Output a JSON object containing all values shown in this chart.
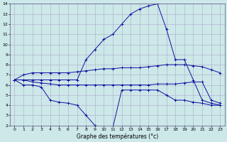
{
  "xlabel": "Graphe des températures (°c)",
  "hours": [
    0,
    1,
    2,
    3,
    4,
    5,
    6,
    7,
    8,
    9,
    10,
    11,
    12,
    13,
    14,
    15,
    16,
    17,
    18,
    19,
    20,
    21,
    22,
    23
  ],
  "temp_main": [
    6.5,
    6.5,
    6.5,
    6.5,
    6.5,
    6.5,
    6.5,
    6.5,
    8.5,
    9.5,
    10.5,
    11.0,
    12.0,
    13.0,
    13.5,
    13.8,
    14.0,
    11.5,
    8.5,
    8.5,
    6.5,
    4.5,
    4.2,
    4.0
  ],
  "temp_min": [
    6.5,
    6.0,
    6.0,
    5.8,
    4.5,
    4.3,
    4.2,
    4.0,
    3.0,
    2.0,
    1.8,
    1.8,
    5.5,
    5.5,
    5.5,
    5.5,
    5.5,
    5.0,
    4.5,
    4.5,
    4.3,
    4.2,
    4.0,
    4.0
  ],
  "temp_upper": [
    6.5,
    7.0,
    7.2,
    7.2,
    7.2,
    7.2,
    7.2,
    7.3,
    7.4,
    7.5,
    7.6,
    7.6,
    7.7,
    7.7,
    7.7,
    7.8,
    7.9,
    8.0,
    8.0,
    8.0,
    7.9,
    7.8,
    7.5,
    7.2
  ],
  "temp_lower": [
    6.5,
    6.5,
    6.3,
    6.2,
    6.1,
    6.0,
    6.0,
    6.0,
    6.0,
    6.0,
    6.0,
    6.0,
    6.0,
    6.0,
    6.0,
    6.0,
    6.1,
    6.1,
    6.1,
    6.2,
    6.3,
    6.3,
    4.5,
    4.2
  ],
  "line_color": "#1010a0",
  "bg_color": "#cce8e8",
  "grid_color": "#aaaacc",
  "ylim": [
    2,
    14
  ],
  "xlim": [
    -0.5,
    23.5
  ],
  "yticks": [
    2,
    3,
    4,
    5,
    6,
    7,
    8,
    9,
    10,
    11,
    12,
    13,
    14
  ],
  "xticks": [
    0,
    1,
    2,
    3,
    4,
    5,
    6,
    7,
    8,
    9,
    10,
    11,
    12,
    13,
    14,
    15,
    16,
    17,
    18,
    19,
    20,
    21,
    22,
    23
  ]
}
